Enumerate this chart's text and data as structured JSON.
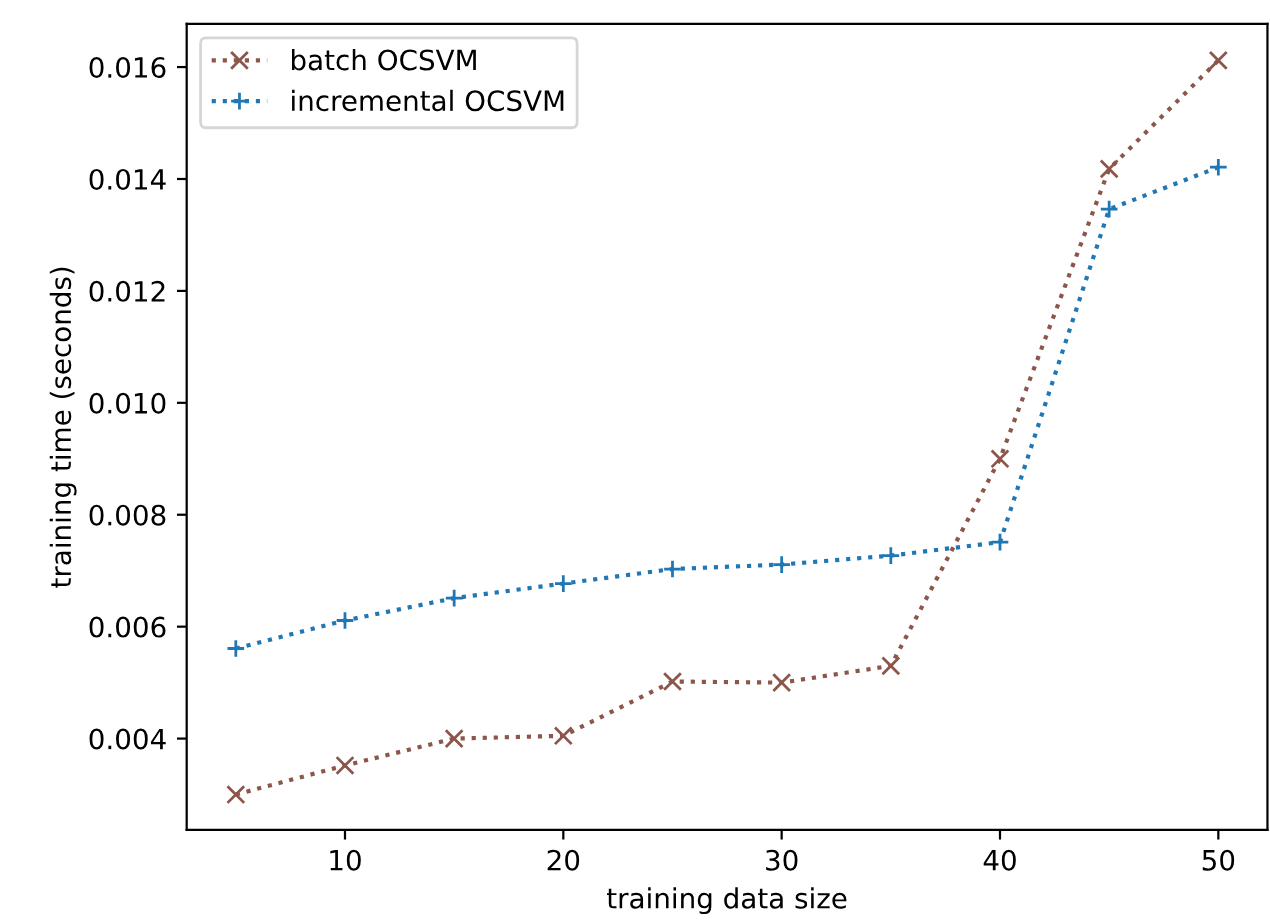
{
  "chart_data": {
    "type": "line",
    "xlabel": "training data size",
    "ylabel": "training time (seconds)",
    "x": [
      5,
      10,
      15,
      20,
      25,
      30,
      35,
      40,
      45,
      50
    ],
    "series": [
      {
        "name": "batch OCSVM",
        "color": "#8c564b",
        "marker": "cross",
        "line_style": "dotted",
        "values": [
          0.003,
          0.00352,
          0.004,
          0.00405,
          0.00502,
          0.005,
          0.0053,
          0.009,
          0.01418,
          0.01612
        ]
      },
      {
        "name": "incremental OCSVM",
        "color": "#1f77b4",
        "marker": "plus",
        "line_style": "dotted",
        "values": [
          0.00561,
          0.00611,
          0.00651,
          0.00677,
          0.00703,
          0.00711,
          0.00727,
          0.00751,
          0.01346,
          0.01421
        ]
      }
    ],
    "xlim": [
      2.75,
      52.25
    ],
    "xticks": [
      10,
      20,
      30,
      40,
      50
    ],
    "ylim": [
      0.00237,
      0.01677
    ],
    "yticks": [
      {
        "value": 0.004,
        "label": "0.004"
      },
      {
        "value": 0.006,
        "label": "0.006"
      },
      {
        "value": 0.008,
        "label": "0.008"
      },
      {
        "value": 0.01,
        "label": "0.010"
      },
      {
        "value": 0.012,
        "label": "0.012"
      },
      {
        "value": 0.014,
        "label": "0.014"
      },
      {
        "value": 0.016,
        "label": "0.016"
      }
    ],
    "grid": false,
    "legend": "top left"
  }
}
